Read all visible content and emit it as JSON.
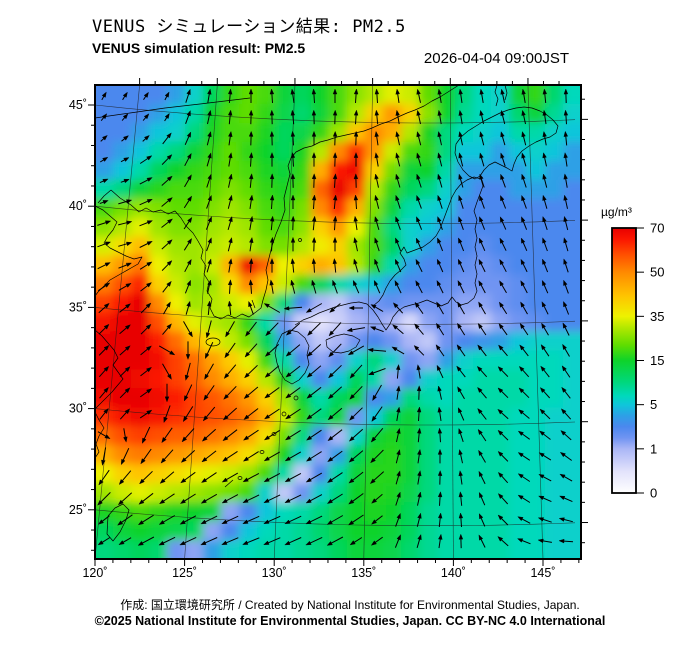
{
  "header": {
    "title_ja": "VENUS シミュレーション結果: PM2.5",
    "title_en": "VENUS simulation result: PM2.5",
    "datetime": "2026-04-04 09:00JST"
  },
  "footer": {
    "credit": "作成: 国立環境研究所 / Created by National Institute for Environmental Studies, Japan.",
    "license": "©2025 National Institute for Environmental Studies, Japan. CC BY-NC 4.0 International"
  },
  "chart_data": {
    "type": "heatmap",
    "variable": "PM2.5",
    "title": "VENUS simulation result: PM2.5",
    "timestamp": "2026-04-04 09:00JST",
    "x_tick_labels": [
      "120˚",
      "125˚",
      "130˚",
      "135˚",
      "140˚",
      "145˚"
    ],
    "y_tick_labels": [
      "45˚",
      "40˚",
      "35˚",
      "30˚",
      "25˚"
    ],
    "lon_ticks": [
      120,
      125,
      130,
      135,
      140,
      145
    ],
    "lat_ticks": [
      45,
      40,
      35,
      30,
      25
    ],
    "lon_range": [
      120,
      147
    ],
    "lat_range": [
      22.5,
      46
    ],
    "grid_on": true,
    "colorbar": {
      "label": "µg/m³",
      "tick_labels": [
        "70",
        "50",
        "35",
        "15",
        "5",
        "1",
        "0"
      ],
      "tick_values": [
        0,
        1,
        5,
        15,
        35,
        50,
        70
      ],
      "colormap": [
        [
          0,
          "#ffffff"
        ],
        [
          0.5,
          "#e2e2fb"
        ],
        [
          1,
          "#aab6f6"
        ],
        [
          2,
          "#7094f2"
        ],
        [
          3,
          "#4b88ee"
        ],
        [
          4,
          "#2da0e6"
        ],
        [
          5,
          "#0fc6da"
        ],
        [
          7,
          "#00d9bb"
        ],
        [
          10,
          "#00d87e"
        ],
        [
          15,
          "#0ed32a"
        ],
        [
          22,
          "#5fdd00"
        ],
        [
          30,
          "#b4e800"
        ],
        [
          35,
          "#eef200"
        ],
        [
          42,
          "#ffc400"
        ],
        [
          50,
          "#ff8a00"
        ],
        [
          58,
          "#ff4f00"
        ],
        [
          65,
          "#fb1600"
        ],
        [
          70,
          "#e80000"
        ]
      ]
    },
    "pm25_grid_ug_m3": [
      [
        3,
        3,
        3,
        3,
        4,
        6,
        12,
        18,
        22,
        20,
        14,
        12,
        15,
        20,
        26,
        30,
        34,
        32,
        22,
        15,
        10,
        7,
        6,
        14,
        18,
        11,
        7
      ],
      [
        3,
        3,
        3,
        4,
        5,
        8,
        15,
        20,
        22,
        18,
        13,
        11,
        14,
        20,
        30,
        40,
        48,
        40,
        26,
        15,
        9,
        7,
        6,
        11,
        14,
        9,
        6
      ],
      [
        3,
        3,
        4,
        5,
        6,
        10,
        16,
        20,
        20,
        16,
        12,
        13,
        18,
        28,
        42,
        50,
        45,
        30,
        16,
        10,
        7,
        6,
        5,
        8,
        8,
        6,
        5
      ],
      [
        3,
        4,
        5,
        8,
        10,
        14,
        18,
        22,
        18,
        15,
        12,
        16,
        30,
        50,
        62,
        48,
        32,
        20,
        18,
        10,
        5,
        5,
        4,
        5,
        6,
        5,
        4
      ],
      [
        4,
        5,
        8,
        12,
        15,
        18,
        20,
        22,
        20,
        16,
        14,
        18,
        45,
        65,
        68,
        40,
        24,
        14,
        15,
        8,
        4,
        4,
        4,
        4,
        5,
        4,
        4
      ],
      [
        8,
        10,
        14,
        17,
        20,
        20,
        22,
        25,
        22,
        18,
        16,
        20,
        55,
        70,
        60,
        30,
        18,
        12,
        10,
        6,
        4,
        3,
        3,
        4,
        4,
        4,
        3
      ],
      [
        20,
        24,
        27,
        25,
        22,
        22,
        25,
        28,
        25,
        20,
        18,
        24,
        50,
        62,
        45,
        25,
        14,
        8,
        6,
        5,
        3,
        3,
        3,
        3,
        3,
        3,
        3
      ],
      [
        26,
        30,
        34,
        28,
        25,
        25,
        28,
        30,
        28,
        22,
        20,
        26,
        40,
        48,
        35,
        20,
        10,
        6,
        5,
        4,
        3,
        3,
        3,
        3,
        3,
        3,
        3
      ],
      [
        33,
        38,
        43,
        32,
        28,
        28,
        30,
        32,
        30,
        25,
        24,
        30,
        36,
        40,
        28,
        20,
        12,
        6,
        4,
        3,
        3,
        2.5,
        3,
        3,
        3,
        3,
        3
      ],
      [
        43,
        48,
        53,
        35,
        30,
        28,
        32,
        45,
        68,
        55,
        35,
        40,
        45,
        42,
        30,
        18,
        8,
        4,
        3,
        3,
        2.5,
        2,
        2.5,
        3,
        3,
        3,
        3
      ],
      [
        52,
        58,
        63,
        40,
        32,
        26,
        28,
        38,
        50,
        42,
        32,
        20,
        12,
        8,
        6,
        5,
        4,
        3,
        3,
        2.5,
        2,
        2,
        2,
        2.5,
        3,
        3,
        3
      ],
      [
        60,
        65,
        70,
        50,
        35,
        28,
        30,
        32,
        35,
        25,
        10,
        3,
        1,
        0.8,
        1.5,
        2,
        2.5,
        2,
        2,
        2,
        1.5,
        1.5,
        2,
        2.5,
        3,
        3,
        3
      ],
      [
        66,
        70,
        70,
        58,
        44,
        34,
        30,
        28,
        18,
        8,
        2,
        0.7,
        0.5,
        0.7,
        1,
        1.5,
        1,
        0.6,
        1.5,
        2,
        1,
        0.8,
        1.5,
        2,
        2.5,
        3,
        3
      ],
      [
        70,
        70,
        70,
        64,
        54,
        44,
        37,
        31,
        24,
        12,
        4,
        1.5,
        0.8,
        1,
        2,
        3,
        2,
        1,
        0.8,
        2,
        3,
        3.5,
        4,
        5,
        6,
        6,
        6
      ],
      [
        70,
        70,
        70,
        67,
        60,
        54,
        47,
        41,
        34,
        19,
        8,
        3,
        1.5,
        2.5,
        6,
        10,
        6,
        2,
        1.5,
        4,
        6,
        7,
        7,
        7,
        7,
        7,
        6
      ],
      [
        70,
        70,
        68,
        65,
        60,
        56,
        50,
        45,
        40,
        30,
        16,
        6,
        3,
        5,
        12,
        8,
        1.5,
        3,
        6,
        7,
        7,
        8,
        8,
        8,
        7,
        7,
        6
      ],
      [
        68,
        70,
        70,
        68,
        64,
        60,
        57,
        53,
        48,
        40,
        28,
        14,
        8,
        12,
        14,
        3,
        4,
        10,
        8,
        7,
        8,
        8,
        8,
        8,
        7,
        7,
        6
      ],
      [
        62,
        66,
        68,
        66,
        62,
        60,
        58,
        56,
        52,
        45,
        32,
        18,
        10,
        14,
        2,
        5,
        12,
        14,
        10,
        8,
        8,
        8,
        8,
        7,
        7,
        6,
        6
      ],
      [
        54,
        58,
        60,
        58,
        56,
        55,
        53,
        50,
        46,
        38,
        24,
        10,
        3,
        1,
        6,
        14,
        16,
        14,
        10,
        8,
        8,
        8,
        8,
        7,
        7,
        6,
        6
      ],
      [
        45,
        50,
        52,
        50,
        48,
        46,
        44,
        42,
        38,
        30,
        16,
        6,
        1.5,
        4,
        12,
        16,
        17,
        14,
        10,
        8,
        8,
        8,
        8,
        7,
        7,
        6,
        6
      ],
      [
        35,
        40,
        42,
        40,
        38,
        36,
        34,
        32,
        28,
        20,
        8,
        0.8,
        3,
        8,
        14,
        17,
        17,
        14,
        10,
        8,
        8,
        8,
        8,
        7,
        7,
        6,
        6
      ],
      [
        28,
        32,
        34,
        32,
        30,
        28,
        26,
        24,
        20,
        6,
        0.8,
        2,
        6,
        10,
        15,
        17,
        16,
        13,
        10,
        8,
        8,
        8,
        8,
        7,
        7,
        6,
        6
      ],
      [
        16,
        18,
        20,
        18,
        16,
        15,
        14,
        1.5,
        3,
        5,
        7,
        8,
        10,
        13,
        15,
        16,
        15,
        12,
        9,
        8,
        8,
        8,
        8,
        7,
        7,
        6,
        6
      ],
      [
        12,
        14,
        15,
        14,
        13,
        12,
        1.5,
        3,
        5,
        7,
        8,
        9,
        11,
        13,
        15,
        15,
        14,
        12,
        9,
        8,
        8,
        8,
        8,
        7,
        7,
        6,
        6
      ],
      [
        10,
        11,
        12,
        11,
        2,
        1.5,
        4,
        6,
        7,
        8,
        8,
        9,
        10,
        12,
        14,
        14,
        13,
        11,
        9,
        8,
        8,
        8,
        8,
        7,
        7,
        6,
        6
      ]
    ],
    "wind_angles_deg_from_north": [
      [
        30,
        32,
        34,
        28,
        18,
        10,
        5,
        0,
        356,
        352,
        356,
        0,
        4,
        356,
        352,
        348,
        350,
        352,
        350,
        348,
        350,
        354,
        358
      ],
      [
        38,
        40,
        40,
        32,
        20,
        12,
        6,
        2,
        358,
        354,
        358,
        2,
        4,
        354,
        350,
        348,
        350,
        350,
        348,
        346,
        348,
        352,
        356
      ],
      [
        48,
        52,
        48,
        38,
        24,
        14,
        8,
        2,
        358,
        356,
        0,
        2,
        2,
        352,
        348,
        346,
        348,
        348,
        346,
        344,
        346,
        350,
        354
      ],
      [
        58,
        62,
        56,
        44,
        28,
        16,
        10,
        4,
        0,
        356,
        0,
        2,
        0,
        350,
        346,
        344,
        346,
        346,
        344,
        342,
        344,
        348,
        352
      ],
      [
        66,
        70,
        62,
        48,
        30,
        18,
        12,
        6,
        2,
        358,
        2,
        4,
        358,
        348,
        344,
        342,
        344,
        344,
        342,
        340,
        342,
        346,
        350
      ],
      [
        70,
        74,
        66,
        50,
        32,
        20,
        14,
        8,
        4,
        0,
        4,
        6,
        356,
        346,
        342,
        340,
        342,
        342,
        340,
        338,
        340,
        344,
        348
      ],
      [
        72,
        76,
        68,
        52,
        34,
        22,
        16,
        10,
        6,
        2,
        6,
        4,
        352,
        344,
        340,
        338,
        340,
        340,
        338,
        336,
        338,
        342,
        346
      ],
      [
        70,
        74,
        64,
        48,
        32,
        20,
        14,
        8,
        4,
        0,
        2,
        0,
        348,
        342,
        338,
        336,
        338,
        338,
        336,
        334,
        336,
        340,
        344
      ],
      [
        64,
        68,
        58,
        44,
        28,
        16,
        10,
        4,
        0,
        354,
        356,
        354,
        344,
        340,
        336,
        334,
        336,
        336,
        334,
        332,
        334,
        338,
        342
      ],
      [
        56,
        60,
        52,
        38,
        22,
        12,
        4,
        356,
        350,
        346,
        344,
        340,
        336,
        336,
        334,
        332,
        334,
        334,
        332,
        330,
        332,
        336,
        340
      ],
      [
        48,
        52,
        44,
        30,
        16,
        6,
        354,
        340,
        300,
        265,
        240,
        230,
        270,
        300,
        318,
        325,
        330,
        330,
        330,
        328,
        330,
        334,
        338
      ],
      [
        46,
        50,
        46,
        40,
        150,
        195,
        210,
        218,
        224,
        228,
        226,
        222,
        260,
        290,
        310,
        320,
        328,
        328,
        326,
        324,
        326,
        330,
        334
      ],
      [
        44,
        48,
        50,
        120,
        180,
        205,
        215,
        222,
        228,
        230,
        228,
        224,
        240,
        275,
        300,
        315,
        325,
        325,
        322,
        320,
        322,
        326,
        330
      ],
      [
        42,
        46,
        52,
        150,
        195,
        210,
        220,
        226,
        230,
        232,
        230,
        226,
        222,
        250,
        5,
        350,
        335,
        322,
        318,
        316,
        318,
        322,
        326
      ],
      [
        40,
        44,
        54,
        180,
        205,
        215,
        224,
        230,
        234,
        234,
        232,
        228,
        224,
        210,
        8,
        2,
        348,
        330,
        320,
        314,
        314,
        318,
        322
      ],
      [
        38,
        42,
        56,
        200,
        212,
        220,
        228,
        232,
        236,
        236,
        234,
        230,
        226,
        215,
        10,
        4,
        352,
        336,
        322,
        312,
        310,
        314,
        318
      ],
      [
        120,
        170,
        205,
        215,
        222,
        228,
        232,
        236,
        238,
        238,
        236,
        232,
        228,
        220,
        12,
        6,
        356,
        342,
        326,
        314,
        306,
        308,
        312
      ],
      [
        190,
        205,
        215,
        222,
        228,
        232,
        236,
        238,
        240,
        240,
        238,
        234,
        230,
        225,
        14,
        8,
        0,
        348,
        330,
        316,
        304,
        302,
        306
      ],
      [
        215,
        220,
        226,
        230,
        234,
        236,
        240,
        242,
        242,
        242,
        240,
        236,
        232,
        228,
        16,
        10,
        2,
        352,
        334,
        318,
        304,
        298,
        300
      ],
      [
        225,
        228,
        232,
        236,
        238,
        240,
        242,
        244,
        244,
        244,
        242,
        238,
        234,
        230,
        18,
        12,
        4,
        354,
        336,
        318,
        302,
        294,
        294
      ],
      [
        232,
        235,
        238,
        240,
        242,
        244,
        245,
        246,
        246,
        245,
        244,
        240,
        236,
        232,
        20,
        14,
        6,
        356,
        336,
        316,
        298,
        288,
        284
      ],
      [
        238,
        240,
        242,
        244,
        245,
        246,
        247,
        248,
        247,
        246,
        245,
        242,
        238,
        234,
        22,
        16,
        8,
        358,
        334,
        312,
        292,
        280,
        274
      ]
    ],
    "wind_speed_class": [
      "11112222222222222222222",
      "11112222222222222222222",
      "11122222222222222222222",
      "11222222222222222222222",
      "11222222222222222222222",
      "12222222222222222222222",
      "22222222222222222222222",
      "22222222222222222222222",
      "22222222222222222222222",
      "22222222222222222222222",
      "22222222333222222222222",
      "22223333333332222222222",
      "22233333333333222222222",
      "22233333333333222222222",
      "22233333333333222222222",
      "22233333333333222222222",
      "22333333333333222222222",
      "33333333333333222222222",
      "33333333333333222222222",
      "33333333333332222222222",
      "23333333333332222222222",
      "22333333333322222222222"
    ]
  }
}
